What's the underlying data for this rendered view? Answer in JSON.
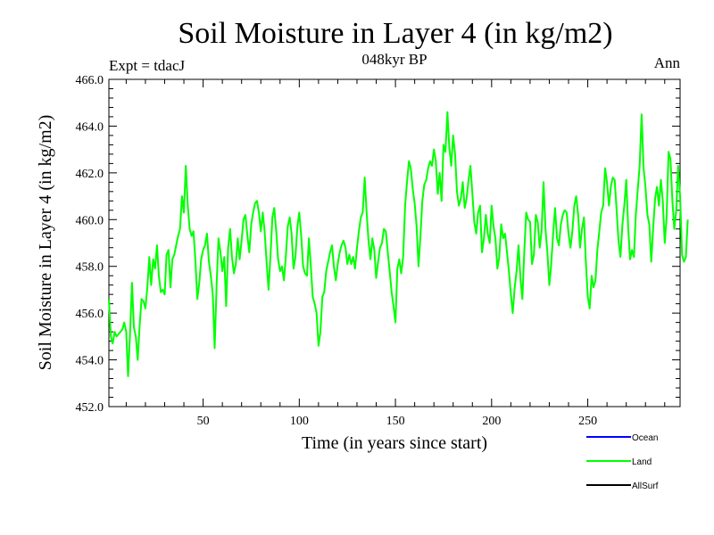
{
  "chart_data": {
    "type": "line",
    "title": "Soil Moisture in Layer 4 (in kg/m2)",
    "subtitle": "048kyr BP",
    "left_label": "Expt = tdacJ",
    "right_label": "Ann",
    "xlabel": "Time (in years since start)",
    "ylabel": "Soil Moisture in Layer 4 (in kg/m2)",
    "xlim": [
      1,
      298
    ],
    "ylim": [
      452.0,
      466.0
    ],
    "x_ticks": [
      50,
      100,
      150,
      200,
      250
    ],
    "y_ticks": [
      "452.0",
      "454.0",
      "456.0",
      "458.0",
      "460.0",
      "462.0",
      "464.0",
      "466.0"
    ],
    "legend": [
      {
        "name": "Ocean",
        "color": "#0000ff"
      },
      {
        "name": "Land",
        "color": "#00ff00"
      },
      {
        "name": "AllSurf",
        "color": "#000000"
      }
    ],
    "legend_position": "bottom-right",
    "series": [
      {
        "name": "Land",
        "color": "#00ff00",
        "x_start": 1,
        "x_step": 1,
        "values": [
          456.6,
          455.0,
          454.7,
          455.2,
          455.0,
          455.1,
          455.2,
          455.3,
          455.6,
          455.2,
          453.3,
          455.1,
          457.3,
          455.4,
          455.0,
          454.0,
          455.5,
          456.6,
          456.5,
          456.2,
          457.1,
          458.4,
          457.2,
          458.3,
          457.9,
          458.9,
          457.6,
          456.9,
          457.0,
          456.8,
          458.5,
          458.7,
          457.1,
          458.3,
          458.5,
          458.9,
          459.3,
          459.6,
          461.0,
          460.3,
          462.3,
          460.6,
          459.6,
          459.3,
          459.5,
          458.2,
          456.6,
          457.3,
          458.3,
          458.7,
          458.9,
          459.4,
          458.2,
          457.6,
          456.8,
          454.5,
          457.2,
          459.2,
          458.6,
          457.8,
          458.4,
          456.3,
          458.8,
          459.6,
          458.4,
          457.7,
          458.1,
          459.2,
          458.3,
          459.1,
          460.0,
          460.2,
          459.3,
          458.6,
          459.8,
          460.3,
          460.7,
          460.8,
          460.3,
          459.5,
          460.3,
          459.5,
          458.2,
          457.0,
          458.4,
          460.1,
          460.5,
          459.5,
          458.3,
          457.8,
          458.0,
          457.4,
          458.4,
          459.7,
          460.1,
          459.4,
          457.9,
          458.4,
          459.7,
          460.3,
          459.3,
          458.0,
          457.7,
          457.6,
          459.2,
          458.0,
          456.7,
          456.4,
          456.0,
          454.6,
          455.2,
          456.7,
          456.9,
          457.8,
          458.2,
          458.6,
          458.9,
          458.0,
          457.4,
          458.1,
          458.6,
          458.9,
          459.1,
          458.8,
          458.1,
          458.5,
          458.1,
          458.4,
          457.9,
          458.8,
          459.5,
          460.1,
          460.3,
          461.8,
          460.3,
          459.1,
          458.3,
          459.2,
          458.7,
          457.5,
          458.2,
          458.8,
          459.0,
          459.6,
          459.5,
          458.6,
          457.8,
          456.9,
          456.3,
          455.6,
          457.9,
          458.3,
          457.7,
          458.4,
          460.6,
          461.6,
          462.5,
          462.2,
          461.3,
          460.7,
          459.7,
          458.0,
          459.3,
          460.8,
          461.5,
          461.7,
          462.2,
          462.5,
          462.3,
          463.0,
          462.5,
          461.1,
          462.0,
          460.8,
          463.2,
          462.9,
          464.6,
          463.1,
          462.3,
          463.6,
          462.8,
          461.2,
          460.6,
          460.9,
          461.6,
          460.5,
          460.9,
          461.7,
          462.3,
          461.1,
          459.9,
          459.4,
          460.3,
          460.6,
          458.6,
          459.2,
          460.2,
          459.4,
          459.0,
          460.6,
          459.7,
          459.2,
          457.9,
          458.4,
          459.8,
          459.2,
          459.4,
          458.6,
          457.8,
          456.8,
          456.0,
          457.1,
          457.8,
          458.9,
          457.5,
          456.6,
          458.7,
          460.3,
          460.0,
          459.9,
          458.1,
          458.5,
          460.2,
          459.9,
          458.8,
          459.5,
          461.6,
          459.6,
          458.6,
          457.2,
          458.1,
          459.4,
          460.5,
          459.2,
          458.9,
          459.8,
          460.2,
          460.4,
          460.3,
          459.4,
          458.8,
          459.5,
          460.6,
          461.0,
          460.2,
          458.8,
          459.6,
          460.1,
          458.2,
          456.7,
          456.2,
          457.6,
          457.1,
          457.4,
          458.7,
          459.5,
          460.3,
          460.6,
          462.2,
          461.6,
          460.6,
          461.4,
          461.8,
          461.7,
          460.4,
          459.1,
          458.4,
          459.8,
          460.6,
          461.7,
          459.7,
          458.3,
          458.7,
          458.4,
          460.2,
          461.3,
          462.3,
          464.5,
          462.2,
          461.4,
          460.2,
          459.8,
          458.2,
          459.6,
          460.9,
          461.4,
          460.6,
          461.7,
          460.8,
          459.0,
          460.1,
          462.9,
          462.6,
          460.8,
          459.6,
          460.4,
          462.3,
          461.0,
          458.5,
          458.2,
          458.4,
          460.0
        ]
      }
    ]
  }
}
